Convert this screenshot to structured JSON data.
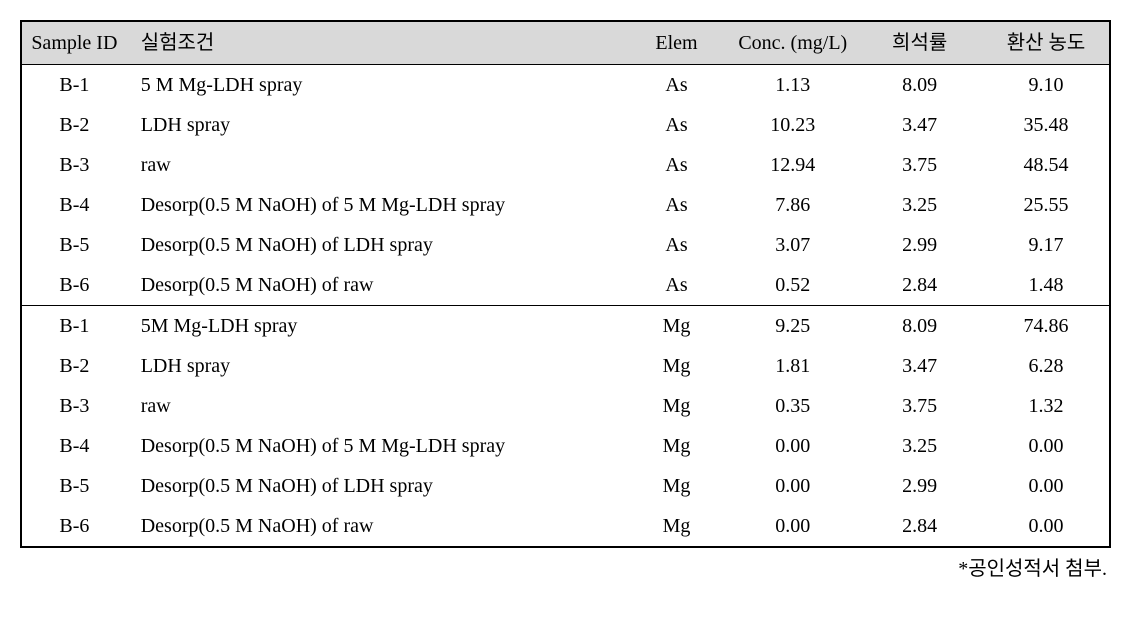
{
  "table": {
    "header": {
      "sample_id": "Sample ID",
      "condition": "실험조건",
      "elem": "Elem",
      "conc": "Conc. (mg/L)",
      "dilution": "희석률",
      "calculated": "환산 농도"
    },
    "header_bg": "#d9d9d9",
    "border_color": "#000000",
    "font_family": "Times New Roman",
    "font_size_pt": 15,
    "sections": [
      {
        "rows": [
          {
            "sample_id": "B-1",
            "condition": "5 M Mg-LDH spray",
            "elem": "As",
            "conc": "1.13",
            "dilution": "8.09",
            "calculated": "9.10"
          },
          {
            "sample_id": "B-2",
            "condition": "LDH spray",
            "elem": "As",
            "conc": "10.23",
            "dilution": "3.47",
            "calculated": "35.48"
          },
          {
            "sample_id": "B-3",
            "condition": "raw",
            "elem": "As",
            "conc": "12.94",
            "dilution": "3.75",
            "calculated": "48.54"
          },
          {
            "sample_id": "B-4",
            "condition": "Desorp(0.5 M NaOH) of 5 M Mg-LDH spray",
            "elem": "As",
            "conc": "7.86",
            "dilution": "3.25",
            "calculated": "25.55"
          },
          {
            "sample_id": "B-5",
            "condition": "Desorp(0.5 M NaOH) of LDH spray",
            "elem": "As",
            "conc": "3.07",
            "dilution": "2.99",
            "calculated": "9.17"
          },
          {
            "sample_id": "B-6",
            "condition": "Desorp(0.5 M NaOH) of raw",
            "elem": "As",
            "conc": "0.52",
            "dilution": "2.84",
            "calculated": "1.48"
          }
        ]
      },
      {
        "rows": [
          {
            "sample_id": "B-1",
            "condition": "5M Mg-LDH spray",
            "elem": "Mg",
            "conc": "9.25",
            "dilution": "8.09",
            "calculated": "74.86"
          },
          {
            "sample_id": "B-2",
            "condition": "LDH spray",
            "elem": "Mg",
            "conc": "1.81",
            "dilution": "3.47",
            "calculated": "6.28"
          },
          {
            "sample_id": "B-3",
            "condition": "raw",
            "elem": "Mg",
            "conc": "0.35",
            "dilution": "3.75",
            "calculated": "1.32"
          },
          {
            "sample_id": "B-4",
            "condition": "Desorp(0.5 M NaOH) of 5 M Mg-LDH spray",
            "elem": "Mg",
            "conc": "0.00",
            "dilution": "3.25",
            "calculated": "0.00"
          },
          {
            "sample_id": "B-5",
            "condition": "Desorp(0.5 M NaOH) of LDH spray",
            "elem": "Mg",
            "conc": "0.00",
            "dilution": "2.99",
            "calculated": "0.00"
          },
          {
            "sample_id": "B-6",
            "condition": "Desorp(0.5 M NaOH) of raw",
            "elem": "Mg",
            "conc": "0.00",
            "dilution": "2.84",
            "calculated": "0.00"
          }
        ]
      }
    ]
  },
  "footnote": "*공인성적서 첨부."
}
